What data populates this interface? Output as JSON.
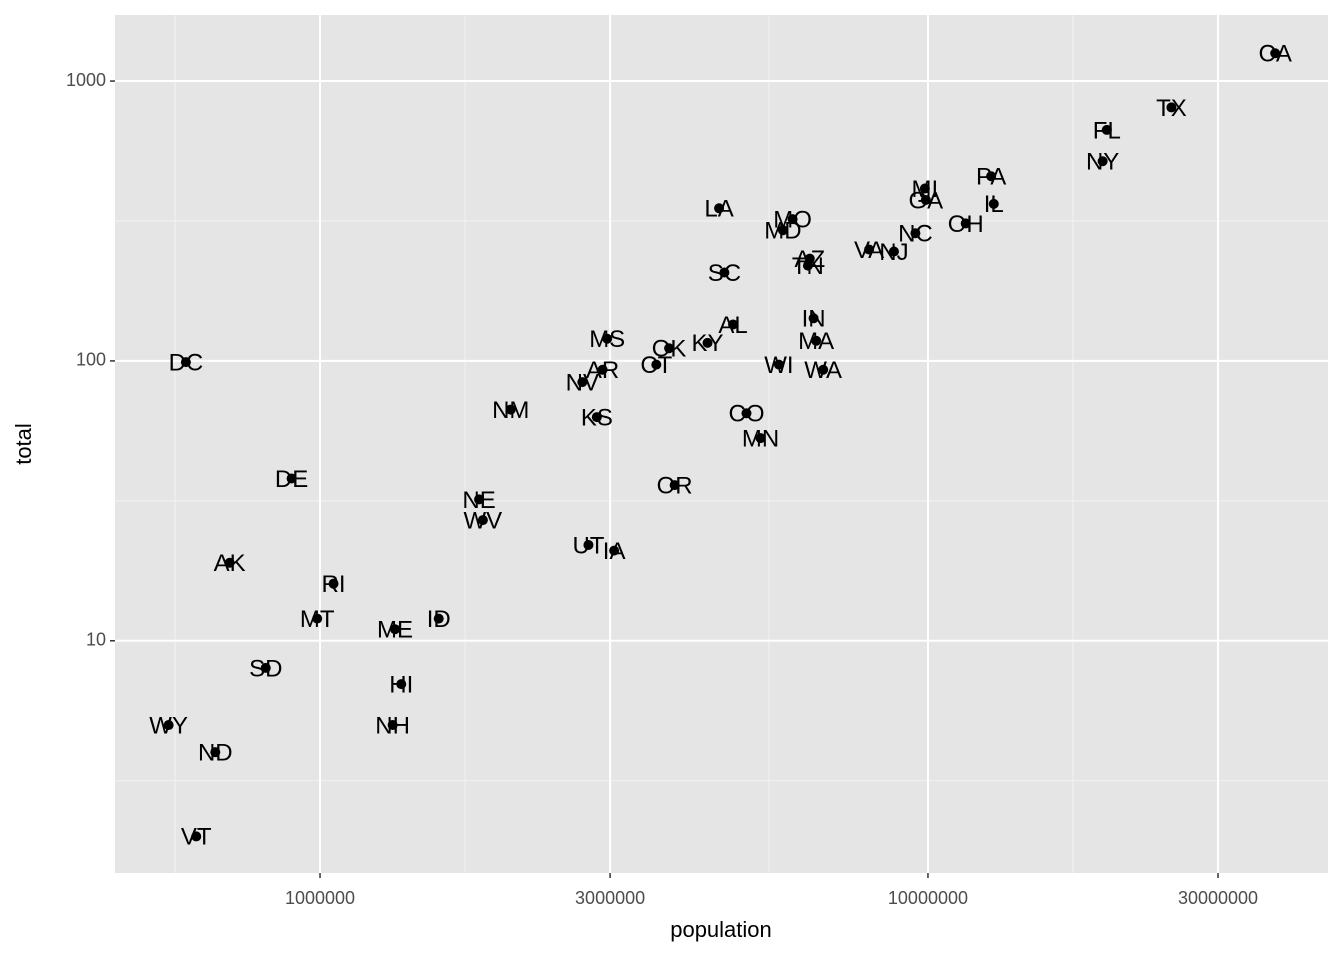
{
  "chart_data": {
    "type": "scatter",
    "x_label": "population",
    "y_label": "total",
    "xscale": "log",
    "yscale": "log",
    "xlim": [
      460000,
      45500000
    ],
    "ylim": [
      1.48,
      1722
    ],
    "xticks": [
      1000000,
      3000000,
      10000000,
      30000000
    ],
    "yticks": [
      10,
      100,
      1000
    ],
    "grid": true,
    "color": "#000000",
    "labels": [
      "AL",
      "AK",
      "AZ",
      "AR",
      "CA",
      "CO",
      "CT",
      "DE",
      "DC",
      "FL",
      "GA",
      "HI",
      "ID",
      "IL",
      "IN",
      "IA",
      "KS",
      "KY",
      "LA",
      "ME",
      "MD",
      "MA",
      "MI",
      "MN",
      "MS",
      "MO",
      "MT",
      "NE",
      "NV",
      "NH",
      "NJ",
      "NM",
      "NY",
      "NC",
      "ND",
      "OH",
      "OK",
      "OR",
      "PA",
      "RI",
      "SC",
      "SD",
      "TN",
      "TX",
      "UT",
      "VT",
      "VA",
      "WA",
      "WV",
      "WI",
      "WY"
    ],
    "x": [
      4779736,
      710231,
      6392017,
      2915918,
      37253956,
      5029196,
      3574097,
      897934,
      601723,
      19687653,
      9920000,
      1360301,
      1567582,
      12830632,
      6483802,
      3046355,
      2853118,
      4339367,
      4533372,
      1328361,
      5773552,
      6547629,
      9883640,
      5303925,
      2967297,
      5988927,
      989415,
      1826341,
      2700551,
      1316470,
      8791894,
      2059179,
      19378102,
      9535483,
      672591,
      11536504,
      3751351,
      3831074,
      12702379,
      1052567,
      4625364,
      814180,
      6346105,
      25145561,
      2763885,
      625741,
      8001024,
      6724540,
      1852994,
      5686986,
      563626
    ],
    "values": [
      135,
      19,
      232,
      93,
      1257,
      65,
      97,
      38,
      99,
      669,
      376,
      7,
      12,
      364,
      142,
      21,
      63,
      116,
      351,
      11,
      293,
      118,
      413,
      53,
      120,
      321,
      12,
      32,
      84,
      5,
      246,
      67,
      517,
      286,
      4,
      310,
      111,
      36,
      457,
      16,
      207,
      8,
      219,
      805,
      22,
      2,
      250,
      93,
      27,
      97,
      5
    ]
  }
}
